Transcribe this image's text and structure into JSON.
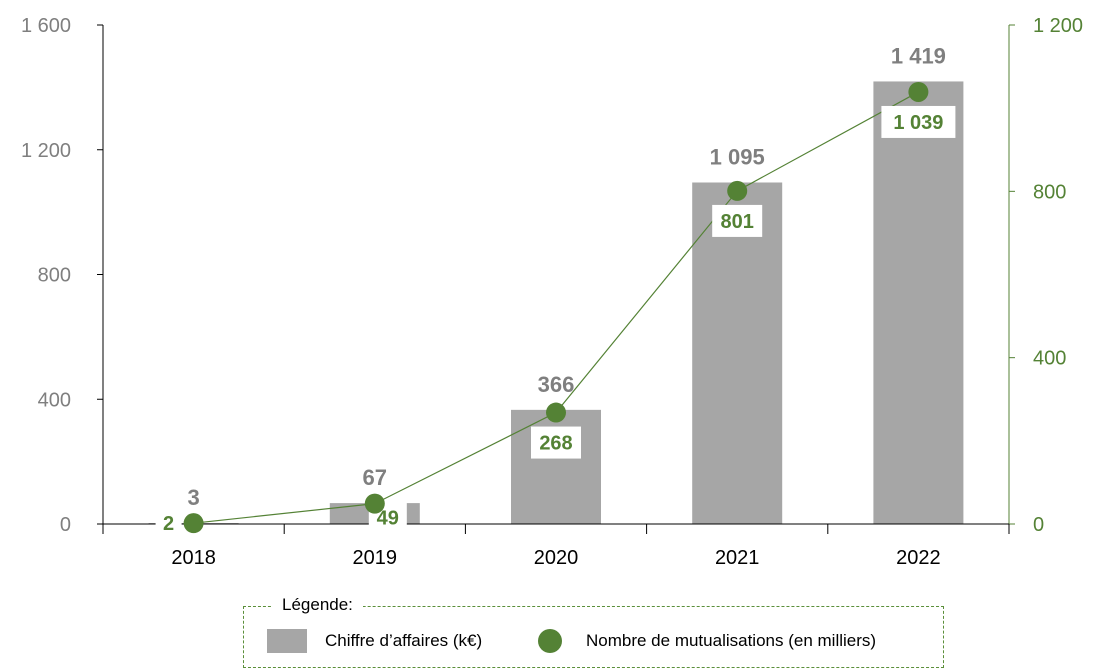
{
  "chart_data": {
    "type": "bar+line",
    "categories": [
      "2018",
      "2019",
      "2020",
      "2021",
      "2022"
    ],
    "series": [
      {
        "name": "Chiffre d’affaires (k€)",
        "type": "bar",
        "axis": "left",
        "values": [
          3,
          67,
          366,
          1095,
          1419
        ],
        "labels": [
          "3",
          "67",
          "366",
          "1 095",
          "1 419"
        ],
        "color": "#a6a6a6"
      },
      {
        "name": "Nombre de mutualisations (en milliers)",
        "type": "line",
        "axis": "right",
        "values": [
          2,
          49,
          268,
          801,
          1039
        ],
        "labels": [
          "2",
          "49",
          "268",
          "801",
          "1 039"
        ],
        "color": "#548235"
      }
    ],
    "y_left": {
      "ylim": [
        0,
        1600
      ],
      "ticks": [
        0,
        400,
        800,
        1200,
        1600
      ],
      "tick_labels": [
        "0",
        "400",
        "800",
        "1 200",
        "1 600"
      ],
      "color": "#7f7f7f"
    },
    "y_right": {
      "ylim": [
        0,
        1200
      ],
      "ticks": [
        0,
        400,
        800,
        1200
      ],
      "tick_labels": [
        "0",
        "400",
        "800",
        "1 200"
      ],
      "color": "#548235"
    },
    "grid": false,
    "legend_position": "bottom"
  },
  "legend": {
    "title": "Légende:",
    "items": [
      {
        "label": "Chiffre d’affaires (k€)",
        "marker": "bar"
      },
      {
        "label": "Nombre de mutualisations (en milliers)",
        "marker": "dot"
      }
    ]
  }
}
